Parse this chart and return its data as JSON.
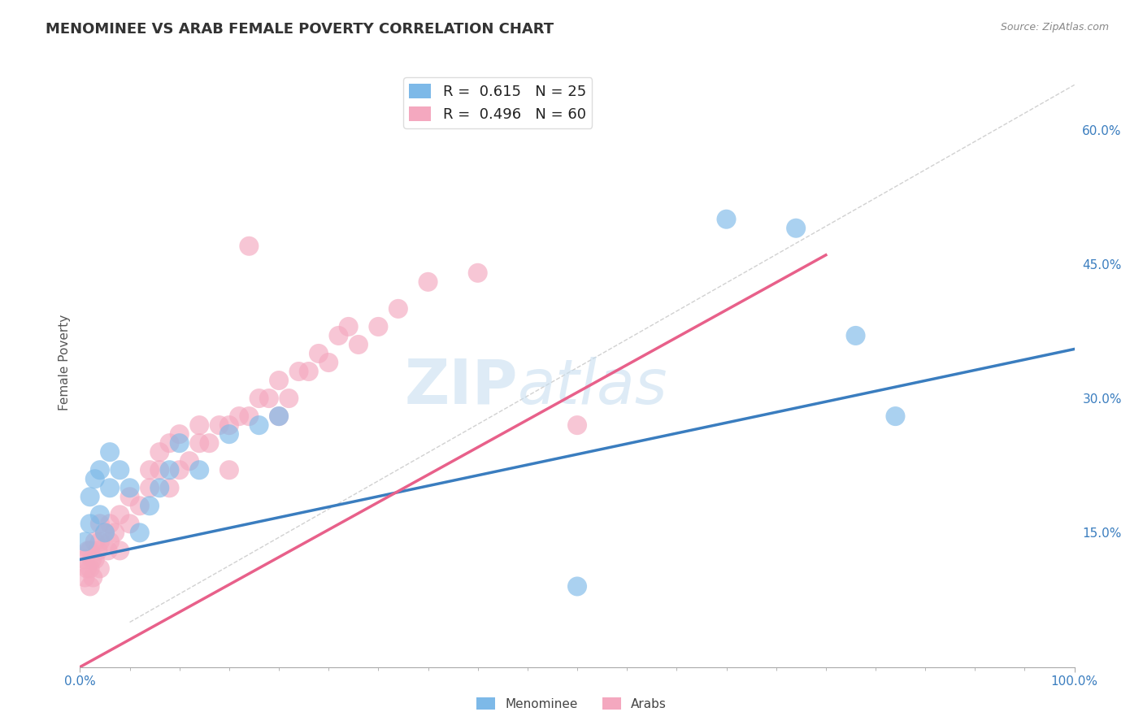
{
  "title": "MENOMINEE VS ARAB FEMALE POVERTY CORRELATION CHART",
  "source": "Source: ZipAtlas.com",
  "ylabel": "Female Poverty",
  "xlim": [
    0,
    1
  ],
  "ylim": [
    0.0,
    0.68
  ],
  "yticks_right": [
    0.15,
    0.3,
    0.45,
    0.6
  ],
  "ytick_labels_right": [
    "15.0%",
    "30.0%",
    "45.0%",
    "60.0%"
  ],
  "xtick_positions": [
    0.0,
    1.0
  ],
  "xtick_labels": [
    "0.0%",
    "100.0%"
  ],
  "menominee_color": "#7db9e8",
  "arab_color": "#f4a8bf",
  "menominee_line_color": "#3a7dbf",
  "arab_line_color": "#e8608a",
  "menominee_R": 0.615,
  "menominee_N": 25,
  "arab_R": 0.496,
  "arab_N": 60,
  "background_color": "#ffffff",
  "grid_color": "#cccccc",
  "watermark": "ZIPatlas",
  "watermark_color": "#c8dff0",
  "diag_color": "#cccccc",
  "menominee_x": [
    0.005,
    0.01,
    0.01,
    0.015,
    0.02,
    0.02,
    0.025,
    0.03,
    0.03,
    0.04,
    0.05,
    0.06,
    0.07,
    0.08,
    0.09,
    0.1,
    0.12,
    0.15,
    0.18,
    0.2,
    0.65,
    0.72,
    0.78,
    0.82,
    0.5
  ],
  "menominee_y": [
    0.14,
    0.16,
    0.19,
    0.21,
    0.17,
    0.22,
    0.15,
    0.2,
    0.24,
    0.22,
    0.2,
    0.15,
    0.18,
    0.2,
    0.22,
    0.25,
    0.22,
    0.26,
    0.27,
    0.28,
    0.5,
    0.49,
    0.37,
    0.28,
    0.09
  ],
  "arab_x": [
    0.005,
    0.005,
    0.007,
    0.008,
    0.01,
    0.01,
    0.01,
    0.012,
    0.013,
    0.015,
    0.015,
    0.018,
    0.02,
    0.02,
    0.02,
    0.025,
    0.028,
    0.03,
    0.03,
    0.035,
    0.04,
    0.04,
    0.05,
    0.05,
    0.06,
    0.07,
    0.07,
    0.08,
    0.08,
    0.09,
    0.09,
    0.1,
    0.1,
    0.11,
    0.12,
    0.12,
    0.13,
    0.14,
    0.15,
    0.15,
    0.16,
    0.17,
    0.18,
    0.19,
    0.2,
    0.2,
    0.21,
    0.22,
    0.23,
    0.24,
    0.25,
    0.26,
    0.27,
    0.28,
    0.3,
    0.32,
    0.35,
    0.4,
    0.5,
    0.17
  ],
  "arab_y": [
    0.1,
    0.12,
    0.11,
    0.13,
    0.09,
    0.11,
    0.13,
    0.12,
    0.1,
    0.12,
    0.14,
    0.13,
    0.11,
    0.14,
    0.16,
    0.15,
    0.13,
    0.14,
    0.16,
    0.15,
    0.13,
    0.17,
    0.16,
    0.19,
    0.18,
    0.2,
    0.22,
    0.22,
    0.24,
    0.2,
    0.25,
    0.22,
    0.26,
    0.23,
    0.25,
    0.27,
    0.25,
    0.27,
    0.22,
    0.27,
    0.28,
    0.28,
    0.3,
    0.3,
    0.28,
    0.32,
    0.3,
    0.33,
    0.33,
    0.35,
    0.34,
    0.37,
    0.38,
    0.36,
    0.38,
    0.4,
    0.43,
    0.44,
    0.27,
    0.47
  ],
  "menominee_trend_x": [
    0.0,
    1.0
  ],
  "menominee_trend_y": [
    0.12,
    0.355
  ],
  "arab_trend_x": [
    0.0,
    0.75
  ],
  "arab_trend_y": [
    0.0,
    0.46
  ]
}
